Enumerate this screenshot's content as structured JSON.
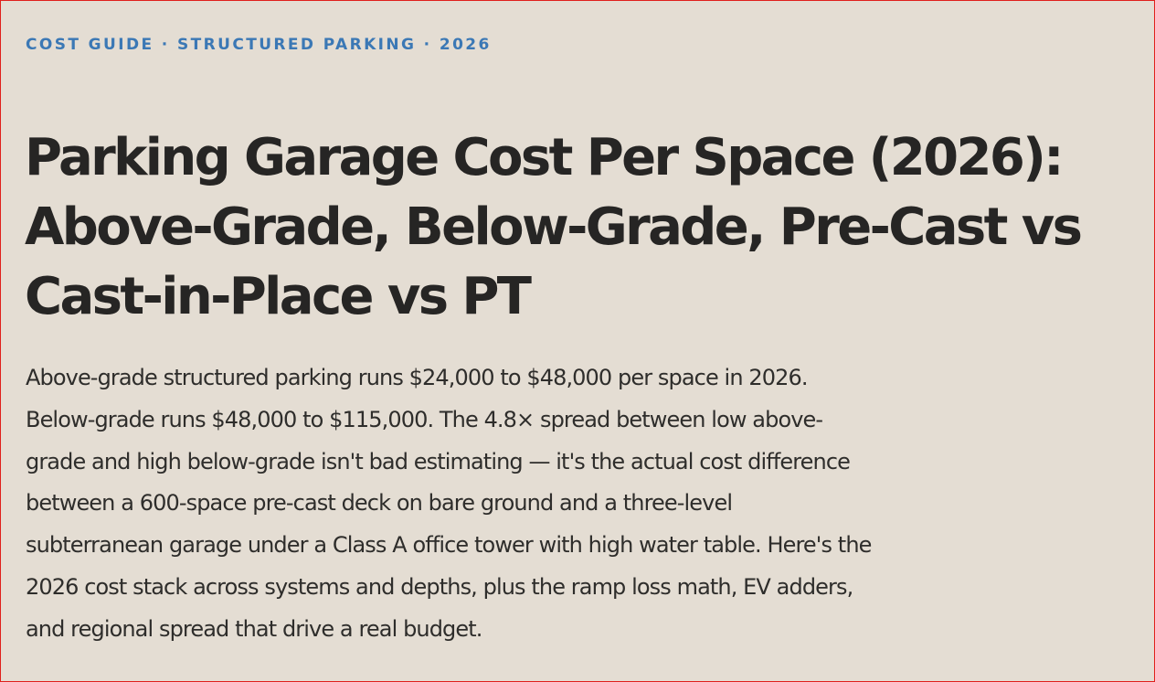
{
  "article": {
    "eyebrow": "COST GUIDE · STRUCTURED PARKING · 2026",
    "title_lines": [
      "Parking Garage Cost Per Space (2026):",
      "Above-Grade, Below-Grade, Pre-Cast vs",
      "Cast-in-Place vs PT"
    ],
    "intro_lines": [
      "Above-grade structured parking runs $24,000 to $48,000 per space in 2026.",
      "Below-grade runs $48,000 to $115,000. The 4.8× spread between low above-",
      "grade and high below-grade isn't bad estimating — it's the actual cost difference",
      "between a 600-space pre-cast deck on bare ground and a three-level",
      "subterranean garage under a Class A office tower with high water table. Here's the",
      "2026 cost stack across systems and depths, plus the ramp loss math, EV adders,",
      "and regional spread that drive a real budget."
    ]
  },
  "colors": {
    "background": "#e4ddd3",
    "accent": "#3b78b5",
    "heading": "#262524",
    "body_text": "#2e2d2b",
    "frame_border": "#e0201c"
  }
}
